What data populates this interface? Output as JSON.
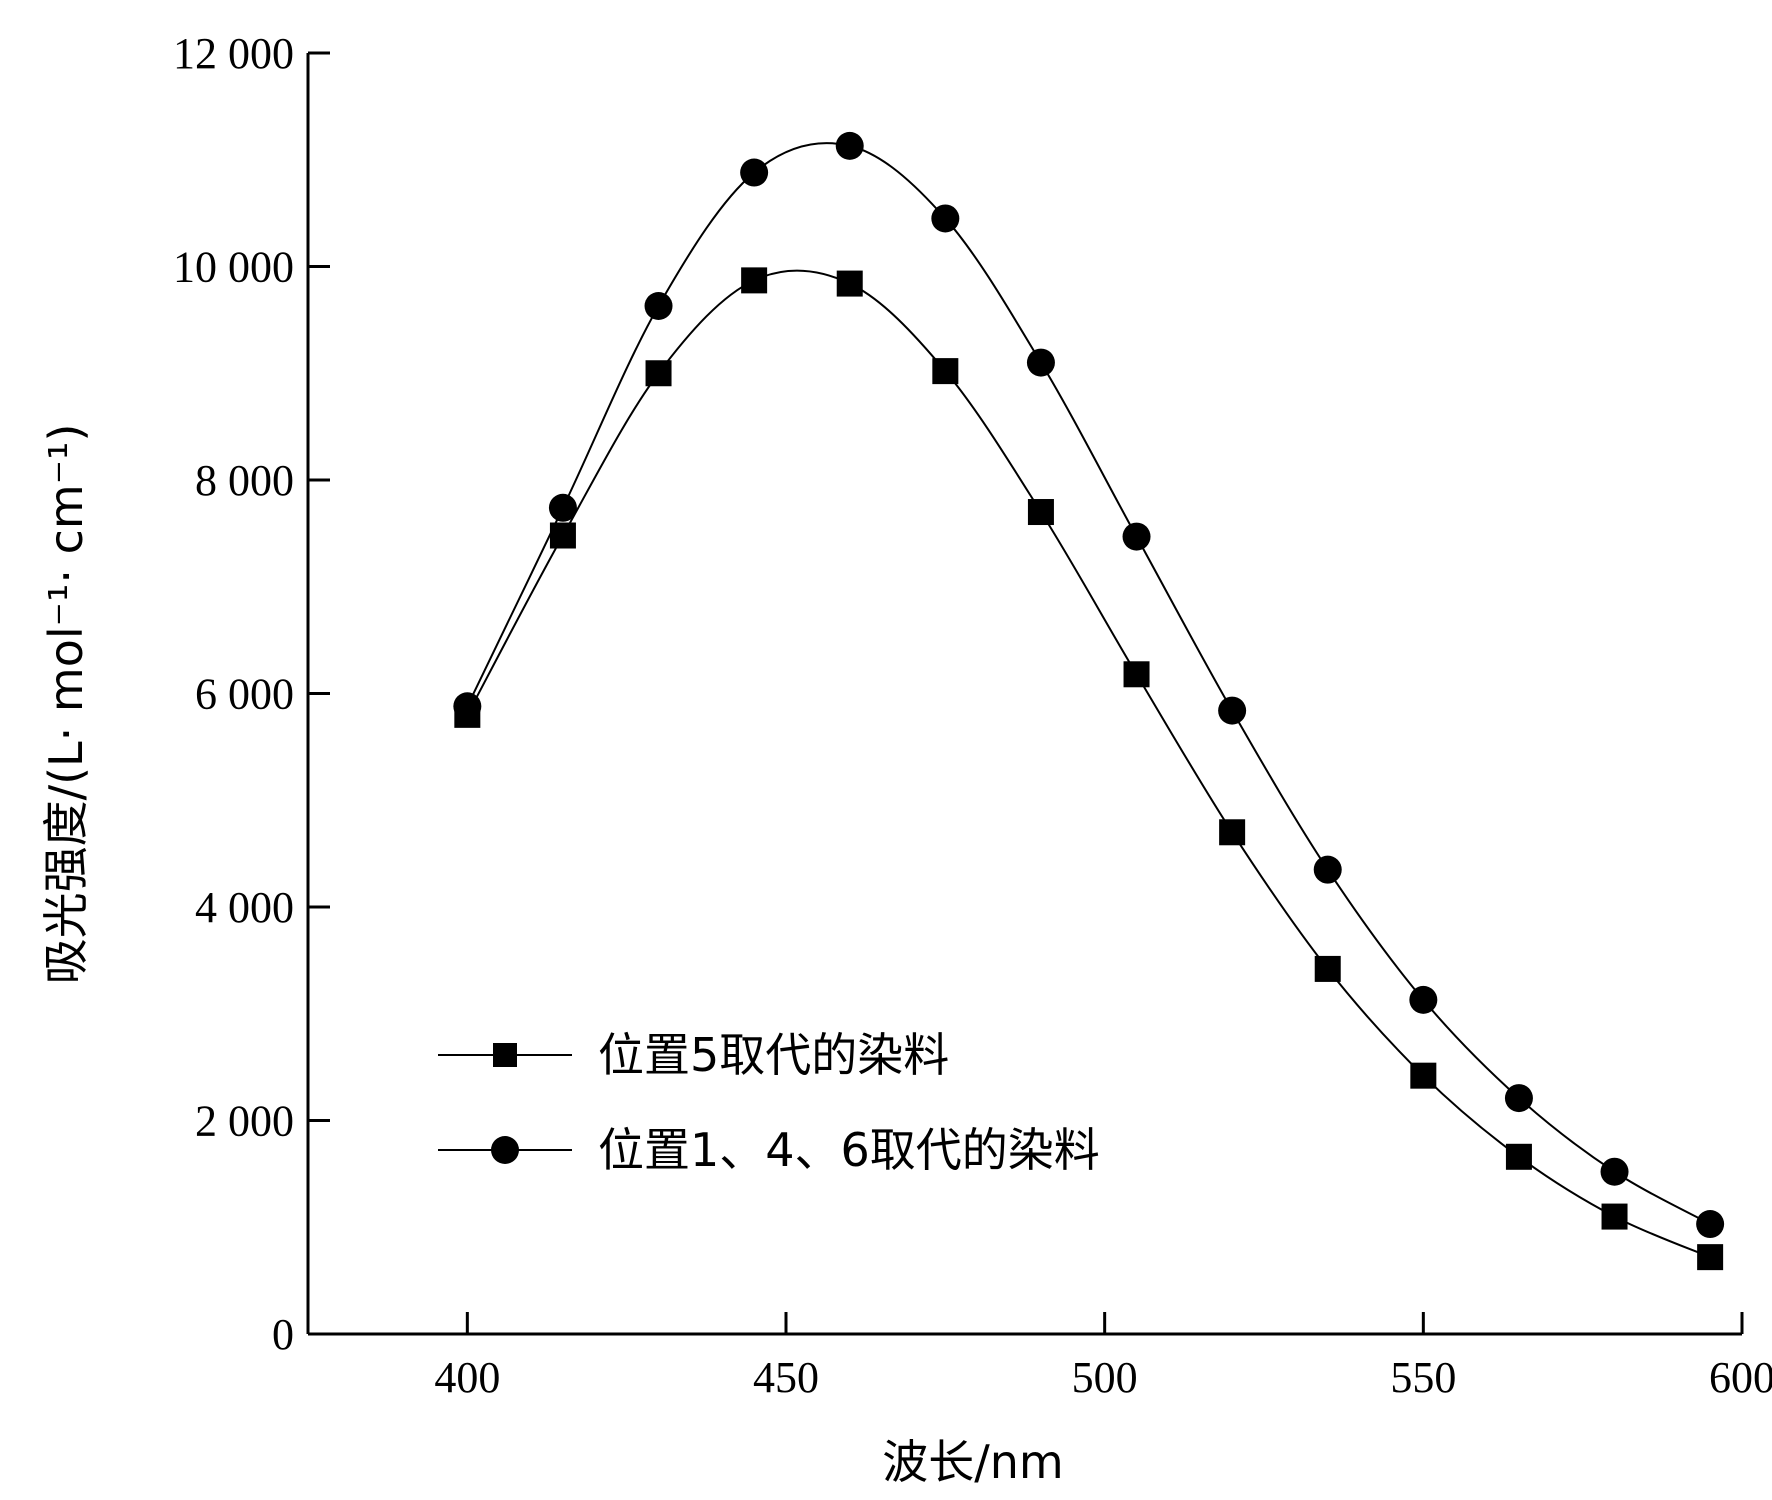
{
  "chart_data": {
    "type": "line",
    "xlabel": "波长/nm",
    "ylabel": "吸光强度/(L· mol⁻¹· cm⁻¹)",
    "xlim": [
      375,
      600
    ],
    "ylim": [
      0,
      12000
    ],
    "x_ticks": [
      400,
      450,
      500,
      550,
      600
    ],
    "y_ticks": [
      0,
      2000,
      4000,
      6000,
      8000,
      10000,
      12000
    ],
    "x_tick_labels": [
      "400",
      "450",
      "500",
      "550",
      "600"
    ],
    "y_tick_labels": [
      "0",
      "2 000",
      "4 000",
      "6 000",
      "8 000",
      "10 000",
      "12 000"
    ],
    "grid": false,
    "legend_position": "bottom-left",
    "series": [
      {
        "name": "位置5取代的染料",
        "marker": "square",
        "x": [
          400,
          415,
          430,
          445,
          460,
          475,
          490,
          505,
          520,
          535,
          550,
          565,
          580,
          595
        ],
        "y": [
          5800,
          7480,
          9000,
          9870,
          9840,
          9020,
          7700,
          6180,
          4700,
          3420,
          2420,
          1660,
          1100,
          720
        ]
      },
      {
        "name": "位置1、4、6取代的染料",
        "marker": "circle",
        "x": [
          400,
          415,
          430,
          445,
          460,
          475,
          490,
          505,
          520,
          535,
          550,
          565,
          580,
          595
        ],
        "y": [
          5880,
          7740,
          9630,
          10880,
          11130,
          10450,
          9100,
          7470,
          5840,
          4350,
          3130,
          2210,
          1520,
          1030
        ]
      }
    ]
  }
}
